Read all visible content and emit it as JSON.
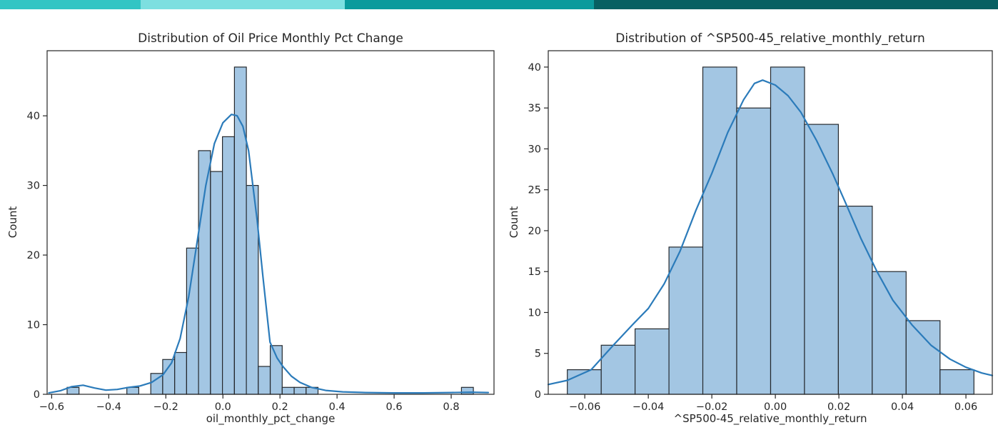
{
  "figure": {
    "background": "#ffffff"
  },
  "top_bar": {
    "segments": [
      {
        "name": "top-bar-segment-1",
        "color": "#33c5c4",
        "width_pct": 14.09
      },
      {
        "name": "top-bar-segment-2",
        "color": "#7ddfe0",
        "width_pct": 20.46
      },
      {
        "name": "top-bar-segment-3",
        "color": "#0b9a9c",
        "width_pct": 24.96
      },
      {
        "name": "top-bar-segment-4",
        "color": "#076062",
        "width_pct": 40.49
      }
    ]
  },
  "chart_data": [
    {
      "type": "histogram",
      "title": "Distribution of Oil Price Monthly Pct Change",
      "xlabel": "oil_monthly_pct_change",
      "ylabel": "Count",
      "grid": false,
      "legend": null,
      "xlim": [
        -0.616,
        0.95
      ],
      "ylim": [
        0,
        49.35
      ],
      "bins": {
        "start": -0.546,
        "width": 0.04188,
        "counts": [
          1,
          0,
          0,
          0,
          0,
          1,
          0,
          3,
          5,
          6,
          21,
          35,
          32,
          37,
          47,
          30,
          4,
          7,
          1,
          1,
          1,
          0,
          0,
          0,
          0,
          0,
          0,
          0,
          0,
          0,
          0,
          0,
          0,
          1
        ]
      },
      "total_samples": 233,
      "kde": [
        [
          -0.61,
          0.2
        ],
        [
          -0.57,
          0.5
        ],
        [
          -0.53,
          1.1
        ],
        [
          -0.49,
          1.3
        ],
        [
          -0.45,
          0.9
        ],
        [
          -0.41,
          0.6
        ],
        [
          -0.37,
          0.7
        ],
        [
          -0.33,
          1.0
        ],
        [
          -0.29,
          1.2
        ],
        [
          -0.25,
          1.7
        ],
        [
          -0.21,
          2.8
        ],
        [
          -0.18,
          4.5
        ],
        [
          -0.15,
          8
        ],
        [
          -0.12,
          14
        ],
        [
          -0.09,
          22
        ],
        [
          -0.06,
          30
        ],
        [
          -0.03,
          36
        ],
        [
          0.0,
          39
        ],
        [
          0.03,
          40.2
        ],
        [
          0.05,
          40.0
        ],
        [
          0.07,
          38.5
        ],
        [
          0.09,
          35
        ],
        [
          0.105,
          30
        ],
        [
          0.12,
          25
        ],
        [
          0.14,
          17
        ],
        [
          0.165,
          7.5
        ],
        [
          0.19,
          5.2
        ],
        [
          0.21,
          4.0
        ],
        [
          0.24,
          2.6
        ],
        [
          0.27,
          1.7
        ],
        [
          0.31,
          1.0
        ],
        [
          0.36,
          0.55
        ],
        [
          0.42,
          0.35
        ],
        [
          0.5,
          0.25
        ],
        [
          0.6,
          0.2
        ],
        [
          0.7,
          0.2
        ],
        [
          0.8,
          0.25
        ],
        [
          0.87,
          0.3
        ],
        [
          0.93,
          0.25
        ]
      ],
      "xticks": {
        "values": [
          -0.6,
          -0.4,
          -0.2,
          0.0,
          0.2,
          0.4,
          0.6,
          0.8
        ],
        "labels": [
          "−0.6",
          "−0.4",
          "−0.2",
          "0.0",
          "0.2",
          "0.4",
          "0.6",
          "0.8"
        ]
      },
      "yticks": {
        "values": [
          0,
          10,
          20,
          30,
          40
        ],
        "labels": [
          "0",
          "10",
          "20",
          "30",
          "40"
        ]
      },
      "colors": {
        "bar_fill": "#a3c6e3",
        "bar_edge": "#24282d",
        "kde_line": "#2b7bba"
      }
    },
    {
      "type": "histogram",
      "title": "Distribution of ^SP500-45_relative_monthly_return",
      "xlabel": "^SP500-45_relative_monthly_return",
      "ylabel": "Count",
      "grid": false,
      "legend": null,
      "xlim": [
        -0.0715,
        0.0683
      ],
      "ylim": [
        0,
        42
      ],
      "bins": {
        "start": -0.0655,
        "width": 0.010667,
        "counts": [
          3,
          6,
          8,
          18,
          40,
          35,
          40,
          33,
          23,
          15,
          9,
          3
        ]
      },
      "total_samples": 233,
      "kde": [
        [
          -0.0715,
          1.2
        ],
        [
          -0.0655,
          1.7
        ],
        [
          -0.058,
          3.0
        ],
        [
          -0.051,
          6.0
        ],
        [
          -0.045,
          8.5
        ],
        [
          -0.04,
          10.5
        ],
        [
          -0.035,
          13.5
        ],
        [
          -0.03,
          17.5
        ],
        [
          -0.025,
          22.5
        ],
        [
          -0.02,
          27
        ],
        [
          -0.015,
          32
        ],
        [
          -0.01,
          36
        ],
        [
          -0.0066,
          38.0
        ],
        [
          -0.004,
          38.4
        ],
        [
          0.0,
          37.8
        ],
        [
          0.004,
          36.5
        ],
        [
          0.008,
          34.5
        ],
        [
          0.013,
          31
        ],
        [
          0.018,
          27
        ],
        [
          0.022,
          23.5
        ],
        [
          0.027,
          19
        ],
        [
          0.032,
          15
        ],
        [
          0.037,
          11.5
        ],
        [
          0.043,
          8.5
        ],
        [
          0.049,
          6.0
        ],
        [
          0.055,
          4.3
        ],
        [
          0.06,
          3.3
        ],
        [
          0.065,
          2.6
        ],
        [
          0.0683,
          2.3
        ]
      ],
      "xticks": {
        "values": [
          -0.06,
          -0.04,
          -0.02,
          0.0,
          0.02,
          0.04,
          0.06
        ],
        "labels": [
          "−0.06",
          "−0.04",
          "−0.02",
          "0.00",
          "0.02",
          "0.04",
          "0.06"
        ]
      },
      "yticks": {
        "values": [
          0,
          5,
          10,
          15,
          20,
          25,
          30,
          35,
          40
        ],
        "labels": [
          "0",
          "5",
          "10",
          "15",
          "20",
          "25",
          "30",
          "35",
          "40"
        ]
      },
      "colors": {
        "bar_fill": "#a3c6e3",
        "bar_edge": "#24282d",
        "kde_line": "#2b7bba"
      }
    }
  ]
}
